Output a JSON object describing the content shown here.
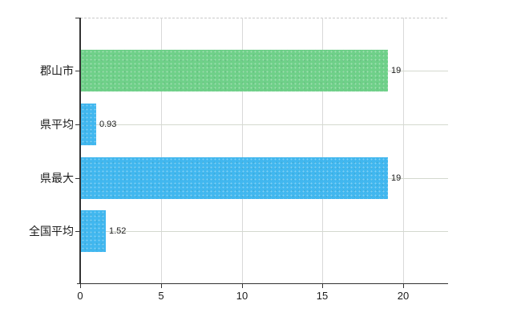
{
  "chart_data": {
    "type": "bar",
    "orientation": "horizontal",
    "title": "",
    "xlabel": "",
    "ylabel": "",
    "categories": [
      "郡山市",
      "県平均",
      "県最大",
      "全国平均"
    ],
    "values": [
      19,
      0.93,
      19,
      1.52
    ],
    "value_labels": [
      "19",
      "0.93",
      "19",
      "1.52"
    ],
    "bar_colors": [
      "#6fd089",
      "#41b7ef",
      "#41b7ef",
      "#41b7ef"
    ],
    "x_ticks": [
      0,
      5,
      10,
      15,
      20
    ],
    "x_tick_labels": [
      "0",
      "5",
      "10",
      "15",
      "20"
    ],
    "xlim": [
      0,
      22.8
    ],
    "grid": true,
    "legend": false
  },
  "colors": {
    "green_bar": "#6fd089",
    "blue_bar": "#41b7ef",
    "vertical_gridline": "#d9d9d9",
    "horizontal_gridline": "#d4d9cf",
    "top_dashed_line": "#c9c9c9",
    "axis": "#333333",
    "text": "#1c1c1c",
    "background": "#ffffff"
  }
}
